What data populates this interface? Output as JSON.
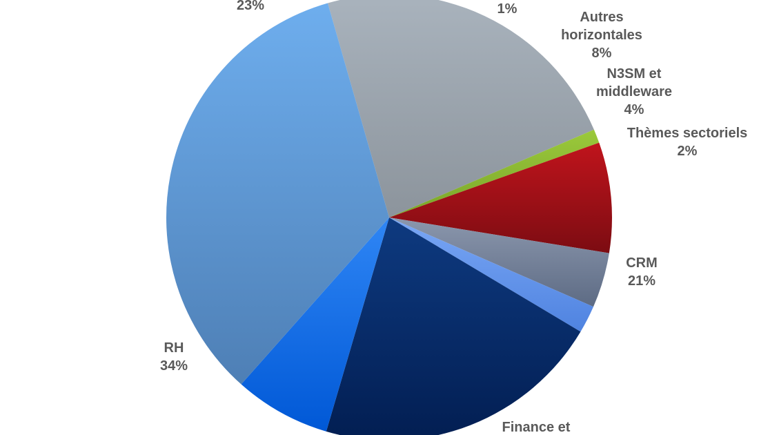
{
  "chart_data": {
    "type": "pie",
    "title": "",
    "start_angle_deg": -16,
    "direction": "clockwise",
    "slices": [
      {
        "name": "",
        "label_lines": [
          "23%"
        ],
        "value": 23,
        "color_top": "#a9b3bd",
        "color_bottom": "#8c949c"
      },
      {
        "name": "",
        "label_lines": [
          "1%"
        ],
        "value": 1,
        "color_top": "#9bc93b",
        "color_bottom": "#7aa52a"
      },
      {
        "name": "Autres horizontales",
        "label_lines": [
          "Autres",
          "horizontales",
          "8%"
        ],
        "value": 8,
        "color_top": "#c0141c",
        "color_bottom": "#7c0c12"
      },
      {
        "name": "N3SM et middleware",
        "label_lines": [
          "N3SM et",
          "middleware",
          "4%"
        ],
        "value": 4,
        "color_top": "#8b97ad",
        "color_bottom": "#5d6b84"
      },
      {
        "name": "Thèmes sectoriels",
        "label_lines": [
          "Thèmes sectoriels",
          "2%"
        ],
        "value": 2,
        "color_top": "#7aa7f5",
        "color_bottom": "#4f83e0"
      },
      {
        "name": "CRM",
        "label_lines": [
          "CRM",
          "21%"
        ],
        "value": 21,
        "color_top": "#0e3a80",
        "color_bottom": "#021e52"
      },
      {
        "name": "Finance et",
        "label_lines": [
          "Finance et"
        ],
        "value": 7,
        "color_top": "#2f86f5",
        "color_bottom": "#0058d6"
      },
      {
        "name": "RH",
        "label_lines": [
          "RH",
          "34%"
        ],
        "value": 34,
        "color_top": "#6eaeee",
        "color_bottom": "#4e7fb5"
      }
    ]
  }
}
